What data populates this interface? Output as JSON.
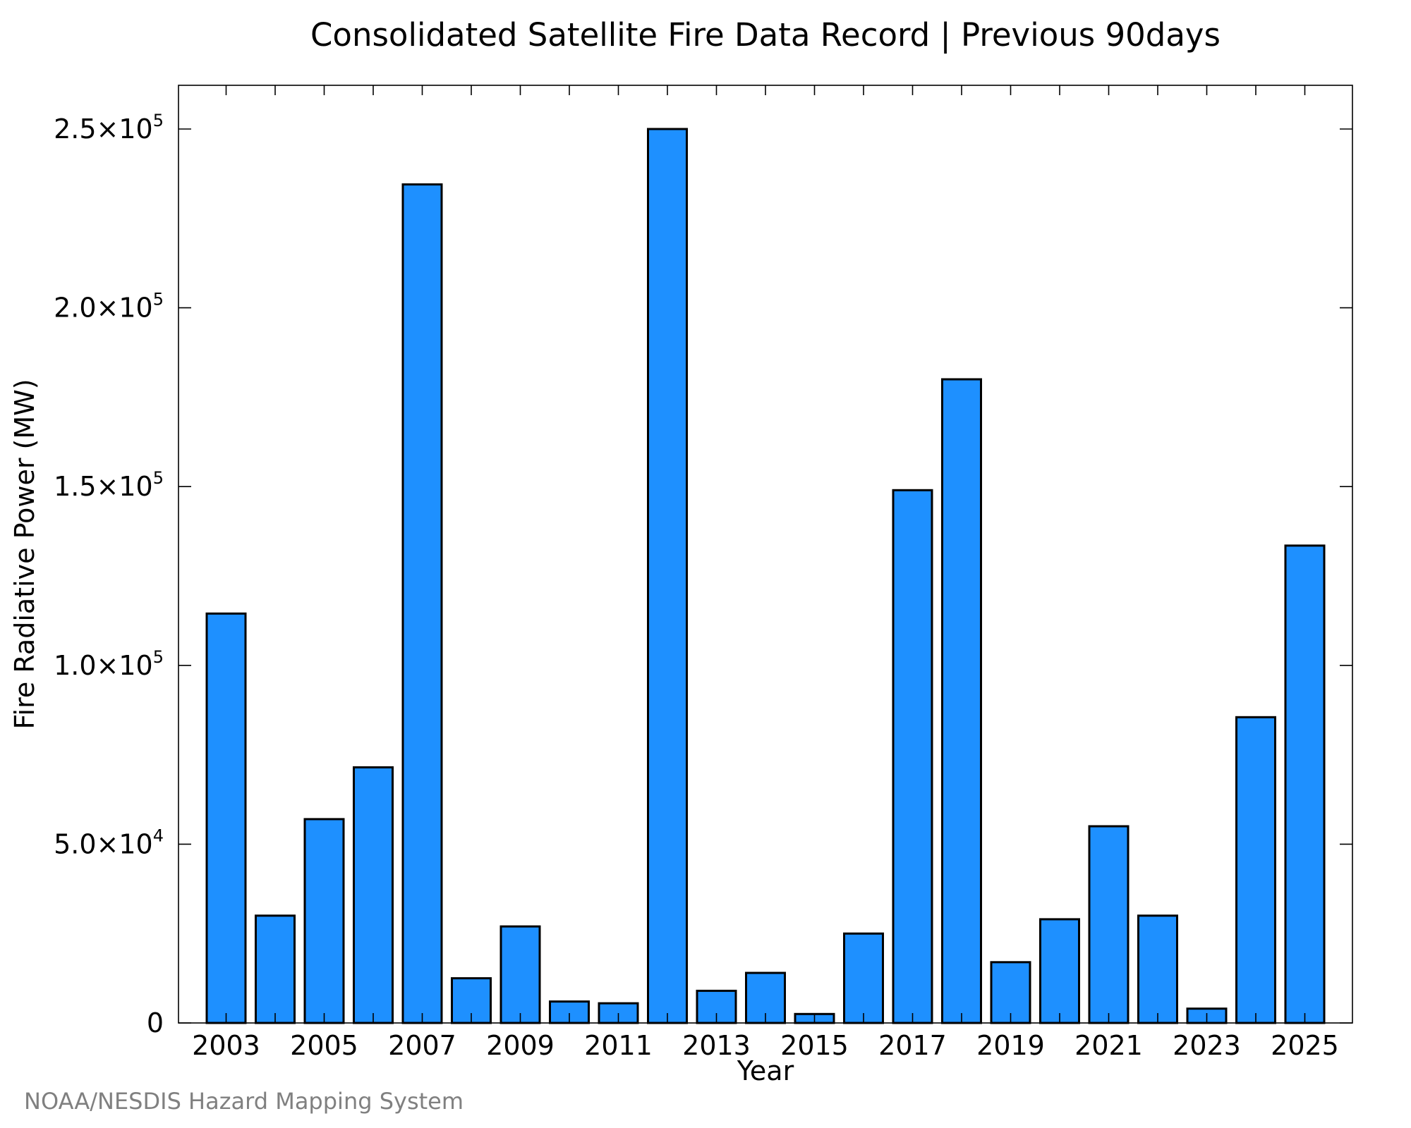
{
  "chart_data": {
    "type": "bar",
    "title": "Consolidated Satellite Fire Data Record | Previous 90days",
    "xlabel": "Year",
    "ylabel": "Fire Radiative Power (MW)",
    "categories": [
      "2003",
      "2004",
      "2005",
      "2006",
      "2007",
      "2008",
      "2009",
      "2010",
      "2011",
      "2012",
      "2013",
      "2014",
      "2015",
      "2016",
      "2017",
      "2018",
      "2019",
      "2020",
      "2021",
      "2022",
      "2023",
      "2024",
      "2025"
    ],
    "x_tick_labels": [
      "2003",
      "2005",
      "2007",
      "2009",
      "2011",
      "2013",
      "2015",
      "2017",
      "2019",
      "2021",
      "2023",
      "2025"
    ],
    "values": [
      114500,
      30000,
      57000,
      71500,
      234500,
      12500,
      27000,
      6000,
      5500,
      250000,
      9000,
      14000,
      2500,
      25000,
      149000,
      180000,
      17000,
      29000,
      55000,
      30000,
      4000,
      85500,
      133500
    ],
    "ylim": [
      0,
      262000
    ],
    "y_ticks": [
      {
        "value": 0,
        "mantissa": "0",
        "exponent": ""
      },
      {
        "value": 50000,
        "mantissa": "5.0×10",
        "exponent": "4"
      },
      {
        "value": 100000,
        "mantissa": "1.0×10",
        "exponent": "5"
      },
      {
        "value": 150000,
        "mantissa": "1.5×10",
        "exponent": "5"
      },
      {
        "value": 200000,
        "mantissa": "2.0×10",
        "exponent": "5"
      },
      {
        "value": 250000,
        "mantissa": "2.5×10",
        "exponent": "5"
      }
    ],
    "bar_color": "#1e90ff",
    "grid": false,
    "legend": "none"
  },
  "footer": "NOAA/NESDIS Hazard Mapping System"
}
